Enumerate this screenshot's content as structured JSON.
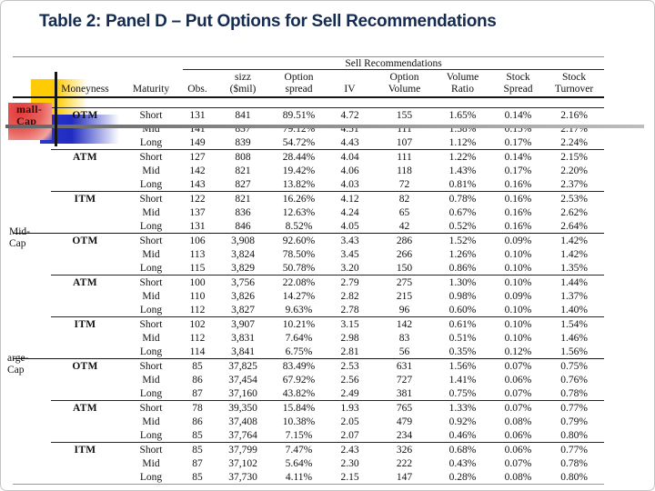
{
  "slide": {
    "title": "Table 2: Panel D – Put Options for Sell Recommendations",
    "colors": {
      "title_navy": "#152c52",
      "decor_yellow": "#ffcb05",
      "decor_red": "#e23a3a",
      "decor_blue": "#2c37c9",
      "decor_gray_line": "#8c8c8c"
    }
  },
  "group_labels": {
    "small_cap": {
      "line1": "mall-",
      "line2": "Cap"
    },
    "mid_cap": {
      "line1": "Mid-",
      "line2": "Cap"
    },
    "large_cap": {
      "line1": "arge-",
      "line2": "Cap"
    }
  },
  "table": {
    "span_header": "Sell Recommendations",
    "columns": [
      {
        "l1": "",
        "l2": "Moneyness"
      },
      {
        "l1": "",
        "l2": "Maturity"
      },
      {
        "l1": "",
        "l2": "Obs."
      },
      {
        "l1": "sizz",
        "l2": "($mil)"
      },
      {
        "l1": "Option",
        "l2": "spread"
      },
      {
        "l1": "",
        "l2": "IV"
      },
      {
        "l1": "Option",
        "l2": "Volume"
      },
      {
        "l1": "Volume",
        "l2": "Ratio"
      },
      {
        "l1": "Stock",
        "l2": "Spread"
      },
      {
        "l1": "Stock",
        "l2": "Turnover"
      }
    ],
    "sections": [
      {
        "rows": [
          [
            "OTM",
            "Short",
            "131",
            "841",
            "89.51%",
            "4.72",
            "155",
            "1.65%",
            "0.14%",
            "2.16%"
          ],
          [
            "",
            "Mid",
            "141",
            "837",
            "79.12%",
            "4.51",
            "111",
            "1.58%",
            "0.15%",
            "2.17%"
          ],
          [
            "",
            "Long",
            "149",
            "839",
            "54.72%",
            "4.43",
            "107",
            "1.12%",
            "0.17%",
            "2.24%"
          ],
          [
            "ATM",
            "Short",
            "127",
            "808",
            "28.44%",
            "4.04",
            "111",
            "1.22%",
            "0.14%",
            "2.15%"
          ],
          [
            "",
            "Mid",
            "142",
            "821",
            "19.42%",
            "4.06",
            "118",
            "1.43%",
            "0.17%",
            "2.20%"
          ],
          [
            "",
            "Long",
            "143",
            "827",
            "13.82%",
            "4.03",
            "72",
            "0.81%",
            "0.16%",
            "2.37%"
          ],
          [
            "ITM",
            "Short",
            "122",
            "821",
            "16.26%",
            "4.12",
            "82",
            "0.78%",
            "0.16%",
            "2.53%"
          ],
          [
            "",
            "Mid",
            "137",
            "836",
            "12.63%",
            "4.24",
            "65",
            "0.67%",
            "0.16%",
            "2.62%"
          ],
          [
            "",
            "Long",
            "131",
            "846",
            "8.52%",
            "4.05",
            "42",
            "0.52%",
            "0.16%",
            "2.64%"
          ]
        ]
      },
      {
        "rows": [
          [
            "OTM",
            "Short",
            "106",
            "3,908",
            "92.60%",
            "3.43",
            "286",
            "1.52%",
            "0.09%",
            "1.42%"
          ],
          [
            "",
            "Mid",
            "113",
            "3,824",
            "78.50%",
            "3.45",
            "266",
            "1.26%",
            "0.10%",
            "1.42%"
          ],
          [
            "",
            "Long",
            "115",
            "3,829",
            "50.78%",
            "3.20",
            "150",
            "0.86%",
            "0.10%",
            "1.35%"
          ],
          [
            "ATM",
            "Short",
            "100",
            "3,756",
            "22.08%",
            "2.79",
            "275",
            "1.30%",
            "0.10%",
            "1.44%"
          ],
          [
            "",
            "Mid",
            "110",
            "3,826",
            "14.27%",
            "2.82",
            "215",
            "0.98%",
            "0.09%",
            "1.37%"
          ],
          [
            "",
            "Long",
            "112",
            "3,827",
            "9.63%",
            "2.78",
            "96",
            "0.60%",
            "0.10%",
            "1.40%"
          ],
          [
            "ITM",
            "Short",
            "102",
            "3,907",
            "10.21%",
            "3.15",
            "142",
            "0.61%",
            "0.10%",
            "1.54%"
          ],
          [
            "",
            "Mid",
            "112",
            "3,831",
            "7.64%",
            "2.98",
            "83",
            "0.51%",
            "0.10%",
            "1.46%"
          ],
          [
            "",
            "Long",
            "114",
            "3,841",
            "6.75%",
            "2.81",
            "56",
            "0.35%",
            "0.12%",
            "1.56%"
          ]
        ]
      },
      {
        "rows": [
          [
            "OTM",
            "Short",
            "85",
            "37,825",
            "83.49%",
            "2.53",
            "631",
            "1.56%",
            "0.07%",
            "0.75%"
          ],
          [
            "",
            "Mid",
            "86",
            "37,454",
            "67.92%",
            "2.56",
            "727",
            "1.41%",
            "0.06%",
            "0.76%"
          ],
          [
            "",
            "Long",
            "87",
            "37,160",
            "43.82%",
            "2.49",
            "381",
            "0.75%",
            "0.07%",
            "0.78%"
          ],
          [
            "ATM",
            "Short",
            "78",
            "39,350",
            "15.84%",
            "1.93",
            "765",
            "1.33%",
            "0.07%",
            "0.77%"
          ],
          [
            "",
            "Mid",
            "86",
            "37,408",
            "10.38%",
            "2.05",
            "479",
            "0.92%",
            "0.08%",
            "0.79%"
          ],
          [
            "",
            "Long",
            "85",
            "37,764",
            "7.15%",
            "2.07",
            "234",
            "0.46%",
            "0.06%",
            "0.80%"
          ],
          [
            "ITM",
            "Short",
            "85",
            "37,799",
            "7.47%",
            "2.43",
            "326",
            "0.68%",
            "0.06%",
            "0.77%"
          ],
          [
            "",
            "Mid",
            "87",
            "37,102",
            "5.64%",
            "2.30",
            "222",
            "0.43%",
            "0.07%",
            "0.78%"
          ],
          [
            "",
            "Long",
            "85",
            "37,730",
            "4.11%",
            "2.15",
            "147",
            "0.28%",
            "0.08%",
            "0.80%"
          ]
        ]
      }
    ]
  }
}
